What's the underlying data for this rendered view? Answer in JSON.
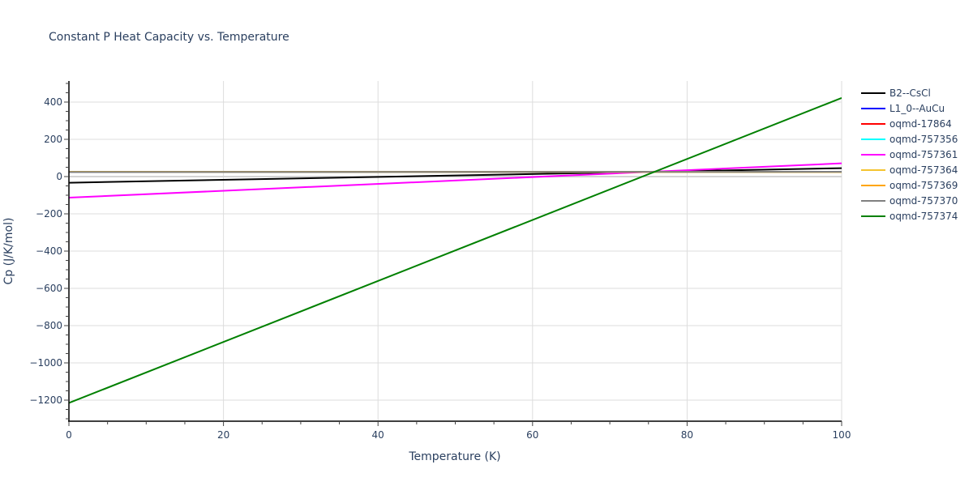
{
  "chart_data": {
    "type": "line",
    "title": "Constant P Heat Capacity vs. Temperature",
    "xlabel": "Temperature (K)",
    "ylabel": "Cp (J/K/mol)",
    "xlim": [
      0,
      100
    ],
    "ylim": [
      -1313,
      513
    ],
    "xticks": [
      0,
      20,
      40,
      60,
      80,
      100
    ],
    "yticks": [
      -1200,
      -1000,
      -800,
      -600,
      -400,
      -200,
      0,
      200,
      400
    ],
    "ytick_labels": [
      "−1200",
      "−1000",
      "−800",
      "−600",
      "−400",
      "−200",
      "0",
      "200",
      "400"
    ],
    "grid": true,
    "legend_position": "right",
    "x": [
      0,
      100
    ],
    "series": [
      {
        "name": "B2--CsCl",
        "color": "#000000",
        "values": [
          -33,
          45
        ]
      },
      {
        "name": "L1_0--AuCu",
        "color": "#0000ff",
        "values": [
          25,
          25
        ]
      },
      {
        "name": "oqmd-17864",
        "color": "#ff0000",
        "values": [
          25,
          25
        ]
      },
      {
        "name": "oqmd-757356",
        "color": "#00ffff",
        "values": [
          25,
          25
        ]
      },
      {
        "name": "oqmd-757361",
        "color": "#ff00ff",
        "values": [
          -113,
          71
        ]
      },
      {
        "name": "oqmd-757364",
        "color": "#f4c430",
        "values": [
          25,
          25
        ]
      },
      {
        "name": "oqmd-757369",
        "color": "#ffa500",
        "values": [
          25,
          25
        ]
      },
      {
        "name": "oqmd-757370",
        "color": "#808080",
        "values": [
          24,
          26
        ]
      },
      {
        "name": "oqmd-757374",
        "color": "#008000",
        "values": [
          -1215,
          422
        ]
      }
    ]
  },
  "layout": {
    "axis_color": "#000000",
    "grid_color": "#dddddd",
    "zero_line_color": "#d3d3d3"
  }
}
